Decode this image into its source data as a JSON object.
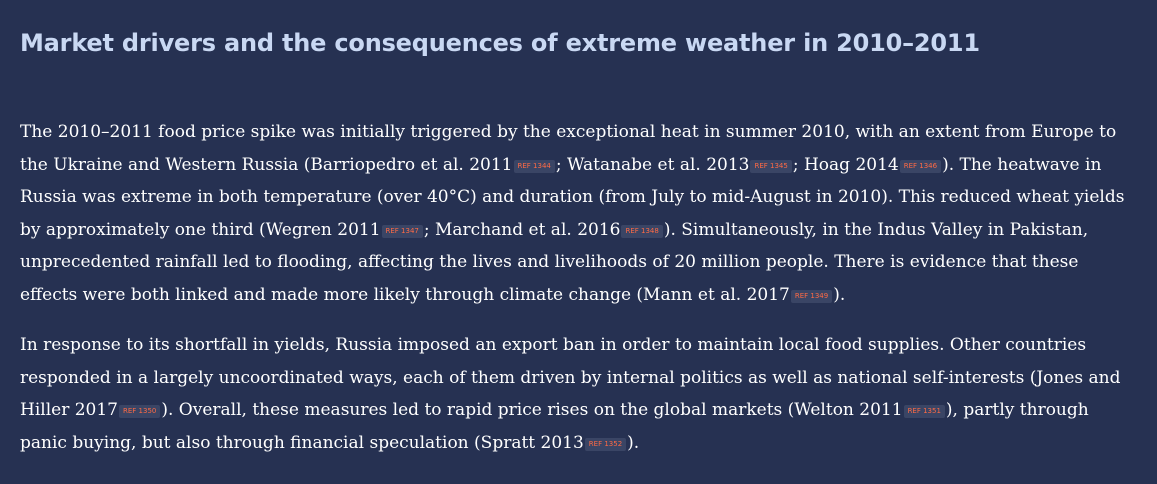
{
  "title": "Market drivers and the consequences of extreme weather in 2010–2011",
  "accent_colors": {
    "background": "#263152",
    "heading": "#c9d8f3",
    "ref_text": "#ff6a45"
  },
  "paragraph1": {
    "s1": "The 2010–2011 food price spike was initially triggered by the exceptional heat in summer 2010, with an extent from Europe to the Ukraine and Western Russia (Barriopedro et al. 2011",
    "r1": "REF 1344",
    "s2": "; Watanabe et al. 2013",
    "r2": "REF 1345",
    "s3": "; Hoag 2014",
    "r3": "REF 1346",
    "s4": "). The heatwave in Russia was extreme in both temperature (over 40°C) and duration (from July to mid-August in 2010). This reduced wheat yields by approximately one third (Wegren 2011",
    "r4": "REF 1347",
    "s5": "; Marchand et al. 2016",
    "r5": "REF 1348",
    "s6": "). Simultaneously, in the Indus Valley in Pakistan, unprecedented rainfall led to flooding, affecting the lives and livelihoods of 20 million people. There is evidence that these effects were both linked and made more likely through climate change (Mann et al. 2017",
    "r6": "REF 1349",
    "s7": ")."
  },
  "paragraph2": {
    "s1": "In response to its shortfall in yields, Russia imposed an export ban in order to maintain local food supplies. Other countries responded in a largely uncoordinated ways, each of them driven by internal politics as well as national self-interests (Jones and Hiller 2017",
    "r1": "REF 1350",
    "s2": "). Overall, these measures led to rapid price rises on the global markets (Welton 2011",
    "r2": "REF 1351",
    "s3": "), partly through panic buying, but also through financial speculation (Spratt 2013",
    "r3": "REF 1352",
    "s4": ")."
  }
}
